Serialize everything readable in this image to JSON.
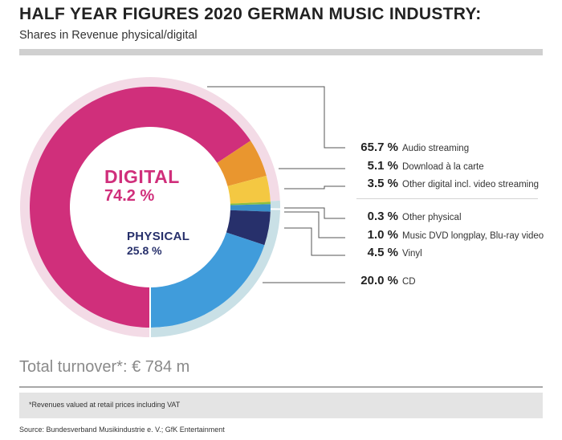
{
  "header": {
    "title": "HALF YEAR FIGURES 2020 GERMAN MUSIC INDUSTRY:",
    "subtitle": "Shares in Revenue physical/digital"
  },
  "center": {
    "digital_label": "DIGITAL",
    "digital_pct": "74.2 %",
    "physical_label": "PHYSICAL",
    "physical_pct": "25.8 %"
  },
  "legend": [
    {
      "pct": "65.7 %",
      "label": "Audio streaming"
    },
    {
      "pct": "5.1 %",
      "label": "Download à la carte"
    },
    {
      "pct": "3.5 %",
      "label": "Other digital incl. video streaming"
    },
    {
      "pct": "0.3 %",
      "label": "Other physical"
    },
    {
      "pct": "1.0 %",
      "label": "Music DVD longplay, Blu-ray video"
    },
    {
      "pct": "4.5 %",
      "label": "Vinyl"
    },
    {
      "pct": "20.0 %",
      "label": "CD"
    }
  ],
  "footer": {
    "total": "Total turnover*: € 784 m",
    "footnote": "*Revenues valued at retail prices including VAT",
    "source": "Source: Bundesverband Musikindustrie e. V.; GfK Entertainment"
  },
  "chart_data": {
    "type": "pie",
    "title": "HALF YEAR FIGURES 2020 GERMAN MUSIC INDUSTRY:",
    "subtitle": "Shares in Revenue physical/digital",
    "unit": "%",
    "groups": [
      {
        "name": "DIGITAL",
        "value": 74.2,
        "color": "#f3dbe6"
      },
      {
        "name": "PHYSICAL",
        "value": 25.8,
        "color": "#c9e0e6"
      }
    ],
    "slices": [
      {
        "name": "Audio streaming",
        "value": 65.7,
        "group": "DIGITAL",
        "color": "#d02f7b"
      },
      {
        "name": "Download à la carte",
        "value": 5.1,
        "group": "DIGITAL",
        "color": "#e9962f"
      },
      {
        "name": "Other digital incl. video streaming",
        "value": 3.5,
        "group": "DIGITAL",
        "color": "#f4c842"
      },
      {
        "name": "Other physical",
        "value": 0.3,
        "group": "PHYSICAL",
        "color": "#8cbf3f"
      },
      {
        "name": "Music DVD longplay, Blu-ray video",
        "value": 1.0,
        "group": "PHYSICAL",
        "color": "#3a8fc9"
      },
      {
        "name": "Vinyl",
        "value": 4.5,
        "group": "PHYSICAL",
        "color": "#27306b"
      },
      {
        "name": "CD",
        "value": 20.0,
        "group": "PHYSICAL",
        "color": "#409cdb"
      }
    ],
    "total": "€ 784 m",
    "legend_position": "right"
  }
}
